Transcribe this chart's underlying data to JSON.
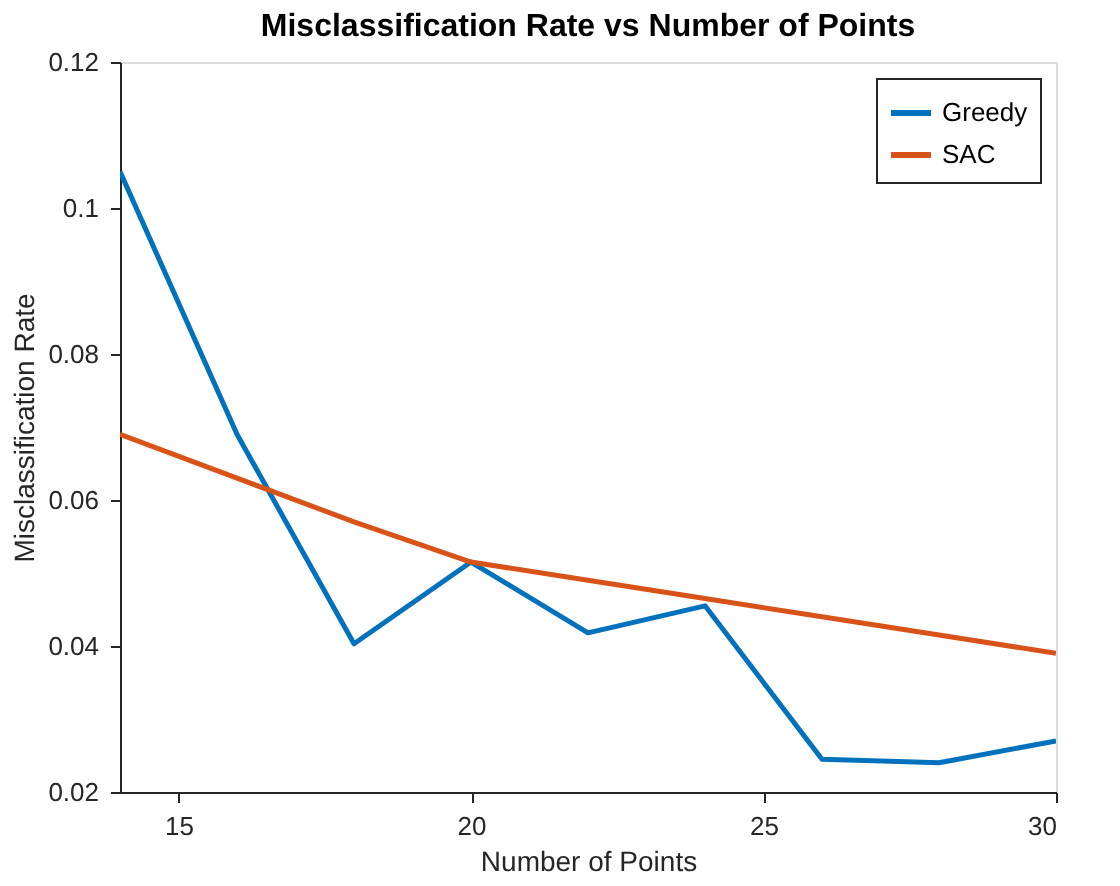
{
  "chart_data": {
    "type": "line",
    "title": "Misclassification Rate vs Number of Points",
    "xlabel": "Number of Points",
    "ylabel": "Misclassification Rate",
    "x": [
      14,
      16,
      18,
      20,
      22,
      24,
      26,
      28,
      30
    ],
    "series": [
      {
        "name": "Greedy",
        "color": "#0072bd",
        "values": [
          0.105,
          0.069,
          0.0403,
          0.0515,
          0.0418,
          0.0455,
          0.0245,
          0.024,
          0.027
        ]
      },
      {
        "name": "SAC",
        "color": "#d95319",
        "values": [
          0.069,
          0.063,
          0.057,
          0.0515,
          0.049,
          0.0465,
          0.044,
          0.0415,
          0.039
        ]
      }
    ],
    "xlim": [
      14,
      30
    ],
    "xticks": [
      15,
      20,
      25,
      30
    ],
    "ylim": [
      0.02,
      0.12
    ],
    "yticks": [
      0.02,
      0.04,
      0.06,
      0.08,
      0.1,
      0.12
    ],
    "grid": false,
    "legend": "top right",
    "marker": "none",
    "line_style": "solid"
  }
}
